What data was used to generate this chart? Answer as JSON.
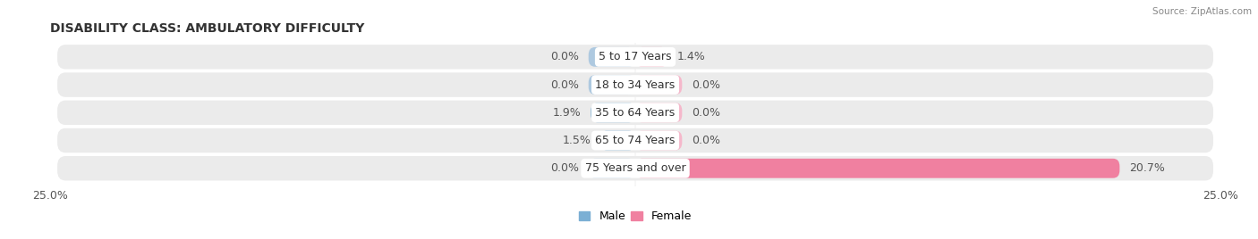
{
  "title": "DISABILITY CLASS: AMBULATORY DIFFICULTY",
  "source": "Source: ZipAtlas.com",
  "categories": [
    "5 to 17 Years",
    "18 to 34 Years",
    "35 to 64 Years",
    "65 to 74 Years",
    "75 Years and over"
  ],
  "male_values": [
    0.0,
    0.0,
    1.9,
    1.5,
    0.0
  ],
  "female_values": [
    1.4,
    0.0,
    0.0,
    0.0,
    20.7
  ],
  "male_color": "#7bafd4",
  "female_color": "#f080a0",
  "male_zero_color": "#aec9e0",
  "female_zero_color": "#f5b8cb",
  "row_bg_color": "#ebebeb",
  "x_max": 25.0,
  "x_min": -25.0,
  "zero_stub": 2.0,
  "title_fontsize": 10,
  "label_fontsize": 9,
  "tick_fontsize": 9,
  "legend_fontsize": 9
}
